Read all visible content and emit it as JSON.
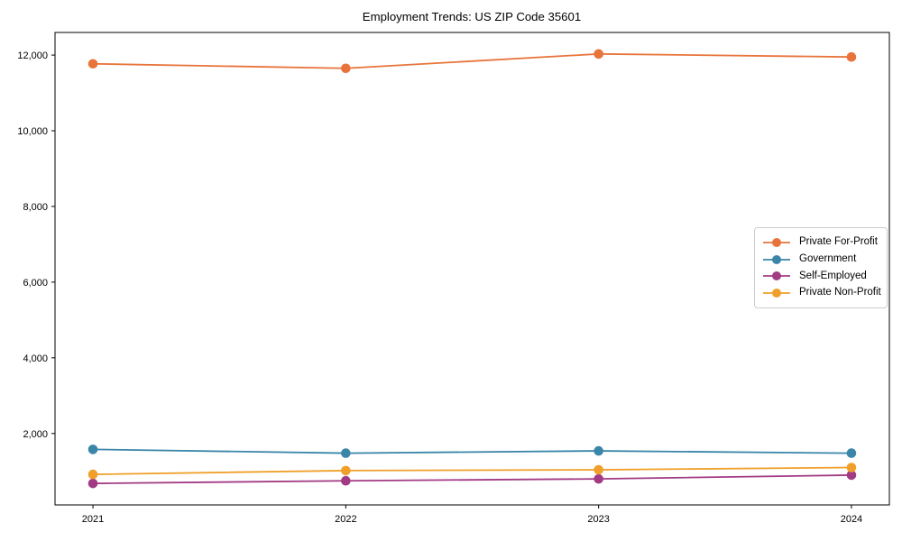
{
  "chart_data": {
    "type": "line",
    "title": "Employment Trends: US ZIP Code 35601",
    "xlabel": "",
    "ylabel": "",
    "x": [
      2021,
      2022,
      2023,
      2024
    ],
    "x_tick_labels": [
      "2021",
      "2022",
      "2023",
      "2024"
    ],
    "y_ticks": [
      2000,
      4000,
      6000,
      8000,
      10000,
      12000
    ],
    "y_tick_labels": [
      "2,000",
      "4,000",
      "6,000",
      "8,000",
      "10,000",
      "12,000"
    ],
    "xlim": [
      2020.85,
      2024.15
    ],
    "ylim": [
      112,
      12598
    ],
    "grid": false,
    "frame": true,
    "legend_position": "center right",
    "marker": "circle",
    "series": [
      {
        "name": "Private For-Profit",
        "color": "#E8743B",
        "values": [
          11770,
          11650,
          12030,
          11950
        ]
      },
      {
        "name": "Government",
        "color": "#3A86A8",
        "values": [
          1580,
          1480,
          1540,
          1480
        ]
      },
      {
        "name": "Self-Employed",
        "color": "#A23A84",
        "values": [
          680,
          750,
          800,
          900
        ]
      },
      {
        "name": "Private Non-Profit",
        "color": "#F0A02A",
        "values": [
          920,
          1020,
          1040,
          1100
        ]
      }
    ]
  }
}
